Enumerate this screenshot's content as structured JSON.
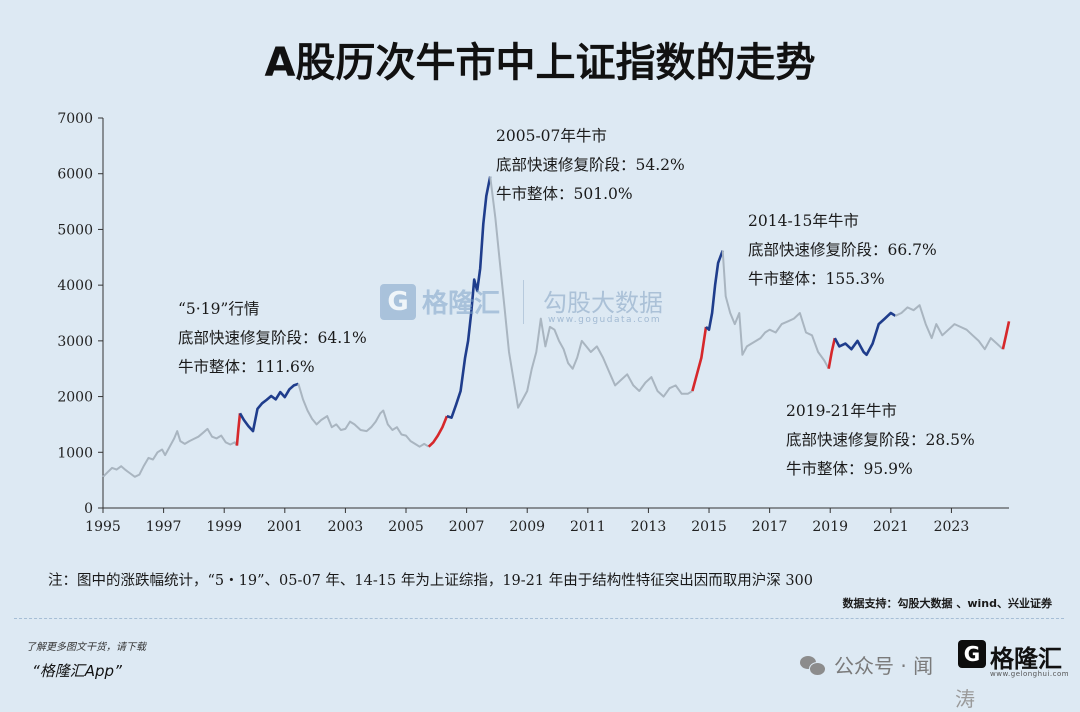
{
  "title": "A股历次牛市中上证指数的走势",
  "chart_data": {
    "type": "line",
    "xlim": [
      1995,
      2024.9
    ],
    "ylim": [
      0,
      7000
    ],
    "yticks": [
      0,
      1000,
      2000,
      3000,
      4000,
      5000,
      6000,
      7000
    ],
    "xticks": [
      1995,
      1997,
      1999,
      2001,
      2003,
      2005,
      2007,
      2009,
      2011,
      2013,
      2015,
      2017,
      2019,
      2021,
      2023
    ],
    "colors": {
      "index": "#a9b5c0",
      "repair": "#d6282b",
      "bull": "#1f3d8c"
    },
    "series": [
      {
        "role": "index",
        "x": [
          1995.0,
          1995.15,
          1995.3,
          1995.45,
          1995.6,
          1995.75,
          1995.9,
          1996.05,
          1996.2,
          1996.35,
          1996.5,
          1996.65,
          1996.8,
          1996.95,
          1997.05,
          1997.2,
          1997.35,
          1997.45,
          1997.55,
          1997.7,
          1997.85,
          1998.0,
          1998.15,
          1998.3,
          1998.45,
          1998.6,
          1998.75,
          1998.9,
          1999.05,
          1999.2,
          1999.35,
          1999.42
        ],
        "y": [
          560,
          640,
          720,
          690,
          750,
          680,
          620,
          560,
          600,
          760,
          900,
          870,
          1000,
          1050,
          950,
          1100,
          1250,
          1380,
          1200,
          1150,
          1200,
          1240,
          1280,
          1350,
          1420,
          1280,
          1250,
          1300,
          1180,
          1140,
          1180,
          1120
        ]
      },
      {
        "role": "repair",
        "x": [
          1999.42,
          1999.47,
          1999.52
        ],
        "y": [
          1120,
          1420,
          1700
        ]
      },
      {
        "role": "bull",
        "x": [
          1999.52,
          1999.65,
          1999.8,
          1999.95,
          2000.1,
          2000.25,
          2000.4,
          2000.55,
          2000.7,
          2000.85,
          2001.0,
          2001.15,
          2001.3,
          2001.45
        ],
        "y": [
          1700,
          1580,
          1470,
          1380,
          1780,
          1880,
          1940,
          2010,
          1950,
          2080,
          1990,
          2130,
          2200,
          2230
        ]
      },
      {
        "role": "index",
        "x": [
          2001.45,
          2001.6,
          2001.75,
          2001.9,
          2002.05,
          2002.2,
          2002.4,
          2002.55,
          2002.7,
          2002.85,
          2003.0,
          2003.15,
          2003.3,
          2003.5,
          2003.7,
          2003.85,
          2004.0,
          2004.15,
          2004.25,
          2004.4,
          2004.55,
          2004.7,
          2004.85,
          2005.0,
          2005.15,
          2005.3,
          2005.45,
          2005.6,
          2005.75
        ],
        "y": [
          2230,
          1950,
          1750,
          1600,
          1500,
          1580,
          1650,
          1450,
          1500,
          1400,
          1420,
          1550,
          1500,
          1400,
          1380,
          1450,
          1550,
          1700,
          1750,
          1500,
          1400,
          1450,
          1320,
          1300,
          1200,
          1150,
          1100,
          1150,
          1100
        ]
      },
      {
        "role": "repair",
        "x": [
          2005.75,
          2005.9,
          2006.05,
          2006.2,
          2006.35
        ],
        "y": [
          1100,
          1180,
          1300,
          1450,
          1650
        ]
      },
      {
        "role": "bull",
        "x": [
          2006.35,
          2006.5,
          2006.65,
          2006.8,
          2006.95,
          2007.05,
          2007.15,
          2007.25,
          2007.35,
          2007.45,
          2007.55,
          2007.65,
          2007.78
        ],
        "y": [
          1650,
          1620,
          1850,
          2100,
          2700,
          3000,
          3500,
          4100,
          3900,
          4300,
          5100,
          5600,
          5950
        ]
      },
      {
        "role": "index",
        "x": [
          2007.78,
          2007.95,
          2008.1,
          2008.25,
          2008.4,
          2008.55,
          2008.7,
          2008.85,
          2009.0,
          2009.15,
          2009.3,
          2009.45,
          2009.6,
          2009.75,
          2009.9,
          2010.05,
          2010.2,
          2010.35,
          2010.5,
          2010.65,
          2010.8,
          2010.95,
          2011.1,
          2011.3,
          2011.5,
          2011.7,
          2011.9,
          2012.1,
          2012.3,
          2012.5,
          2012.7,
          2012.9,
          2013.1,
          2013.3,
          2013.5,
          2013.7,
          2013.9,
          2014.1,
          2014.3,
          2014.45
        ],
        "y": [
          5950,
          5200,
          4400,
          3600,
          2800,
          2300,
          1800,
          1950,
          2100,
          2500,
          2800,
          3400,
          2900,
          3250,
          3200,
          3000,
          2850,
          2600,
          2500,
          2700,
          3000,
          2900,
          2800,
          2900,
          2700,
          2450,
          2200,
          2300,
          2400,
          2200,
          2100,
          2250,
          2350,
          2100,
          2000,
          2150,
          2200,
          2050,
          2050,
          2100
        ]
      },
      {
        "role": "repair",
        "x": [
          2014.45,
          2014.6,
          2014.75,
          2014.9
        ],
        "y": [
          2100,
          2400,
          2700,
          3250
        ]
      },
      {
        "role": "bull",
        "x": [
          2014.9,
          2015.0,
          2015.1,
          2015.2,
          2015.3,
          2015.45
        ],
        "y": [
          3250,
          3200,
          3500,
          4000,
          4400,
          4620
        ]
      },
      {
        "role": "index",
        "x": [
          2015.45,
          2015.55,
          2015.7,
          2015.85,
          2016.0,
          2016.1,
          2016.25,
          2016.4,
          2016.55,
          2016.7,
          2016.85,
          2017.0,
          2017.2,
          2017.4,
          2017.6,
          2017.8,
          2018.0,
          2018.2,
          2018.4,
          2018.6,
          2018.8,
          2018.95
        ],
        "y": [
          4620,
          3800,
          3500,
          3300,
          3500,
          2750,
          2900,
          2950,
          3000,
          3050,
          3150,
          3200,
          3150,
          3300,
          3350,
          3400,
          3500,
          3150,
          3100,
          2800,
          2650,
          2500
        ]
      },
      {
        "role": "repair",
        "x": [
          2018.95,
          2019.05,
          2019.15
        ],
        "y": [
          2500,
          2800,
          3050
        ]
      },
      {
        "role": "bull",
        "x": [
          2019.15,
          2019.3,
          2019.5,
          2019.7,
          2019.9,
          2020.1,
          2020.2,
          2020.4,
          2020.6,
          2020.8,
          2021.0,
          2021.15
        ],
        "y": [
          3050,
          2900,
          2950,
          2850,
          3000,
          2800,
          2750,
          2950,
          3300,
          3400,
          3500,
          3450
        ]
      },
      {
        "role": "index",
        "x": [
          2021.15,
          2021.35,
          2021.55,
          2021.75,
          2021.95,
          2022.15,
          2022.35,
          2022.5,
          2022.7,
          2022.9,
          2023.1,
          2023.3,
          2023.5,
          2023.7,
          2023.9,
          2024.1,
          2024.3,
          2024.5,
          2024.7
        ],
        "y": [
          3450,
          3500,
          3600,
          3550,
          3640,
          3300,
          3050,
          3300,
          3100,
          3200,
          3300,
          3250,
          3200,
          3100,
          3000,
          2850,
          3050,
          2950,
          2850
        ]
      },
      {
        "role": "repair",
        "x": [
          2024.7,
          2024.8,
          2024.9
        ],
        "y": [
          2850,
          3100,
          3350
        ]
      }
    ],
    "annotations": [
      {
        "lines": [
          "“5·19”行情",
          "底部快速修复阶段：64.1%",
          "牛市整体：111.6%"
        ]
      },
      {
        "lines": [
          "2005-07年牛市",
          "底部快速修复阶段：54.2%",
          "牛市整体：501.0%"
        ]
      },
      {
        "lines": [
          "2014-15年牛市",
          "底部快速修复阶段：66.7%",
          "牛市整体：155.3%"
        ]
      },
      {
        "lines": [
          "2019-21年牛市",
          "底部快速修复阶段：28.5%",
          "牛市整体：95.9%"
        ]
      }
    ]
  },
  "watermark": {
    "logo_g": "G",
    "brand": "格隆汇",
    "brand2": "勾股大数据",
    "url": "www.gogudata.com"
  },
  "footer": {
    "note": "注：图中的涨跌幅统计，“5・19”、05-07 年、14-15 年为上证综指，19-21 年由于结构性特征突出因而取用沪深 300",
    "source": "数据支持：勾股大数据 、wind、兴业证券",
    "promo_line1": "了解更多图文干货，请下载",
    "promo_line2": "“格隆汇App”",
    "wechat_label": "公众号 · 闻",
    "logo_g": "G",
    "logo_text": "格隆汇",
    "logo_small": "www.gelonghui.com",
    "tail": "涛"
  }
}
